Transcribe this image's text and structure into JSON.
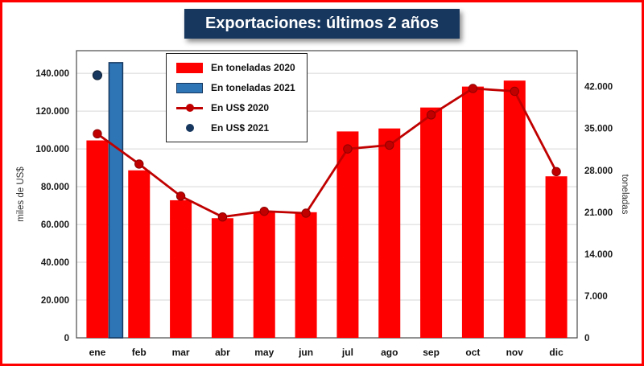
{
  "page": {
    "title_banner": "Exportaciones: últimos 2 años"
  },
  "chart_data": {
    "type": "bar+line",
    "title": "Exportaciones: últimos 2 años",
    "categories": [
      "ene",
      "feb",
      "mar",
      "abr",
      "may",
      "jun",
      "jul",
      "ago",
      "sep",
      "oct",
      "nov",
      "dic"
    ],
    "series": [
      {
        "name": "En toneladas 2020",
        "type": "bar",
        "axis": "right",
        "color": "#FE0000",
        "values": [
          33000,
          28000,
          23000,
          20000,
          21000,
          21000,
          34500,
          35000,
          38500,
          42000,
          43000,
          27000
        ]
      },
      {
        "name": "En toneladas 2021",
        "type": "bar",
        "axis": "right",
        "color": "#2E75B6",
        "values": [
          46000,
          null,
          null,
          null,
          null,
          null,
          null,
          null,
          null,
          null,
          null,
          null
        ]
      },
      {
        "name": "En US$ 2020",
        "type": "line",
        "axis": "left",
        "color": "#C00000",
        "values": [
          108000,
          92000,
          75000,
          64000,
          67000,
          66000,
          100000,
          102000,
          118000,
          132000,
          130500,
          88000
        ]
      },
      {
        "name": "En US$ 2021",
        "type": "point",
        "axis": "left",
        "color": "#17375E",
        "values": [
          139000,
          null,
          null,
          null,
          null,
          null,
          null,
          null,
          null,
          null,
          null,
          null
        ]
      }
    ],
    "left_axis": {
      "label": "miles de US$",
      "max": 152000,
      "tick_values": [
        0,
        20000,
        40000,
        60000,
        80000,
        100000,
        120000,
        140000
      ],
      "tick_labels": [
        "0",
        "20.000",
        "40.000",
        "60.000",
        "80.000",
        "100.000",
        "120.000",
        "140.000"
      ]
    },
    "right_axis": {
      "label": "toneladas",
      "max": 48000,
      "tick_values": [
        0,
        7000,
        14000,
        21000,
        28000,
        35000,
        42000
      ],
      "tick_labels": [
        "0",
        "7.000",
        "14.000",
        "21.000",
        "28.000",
        "35.000",
        "42.000"
      ]
    },
    "legend": {
      "position": "top-left",
      "entries": [
        "En toneladas 2020",
        "En toneladas 2021",
        "En US$ 2020",
        "En US$ 2021"
      ]
    },
    "grid": "horizontal",
    "frame_border_color": "#FE0000",
    "title_bg_color": "#17375E"
  }
}
